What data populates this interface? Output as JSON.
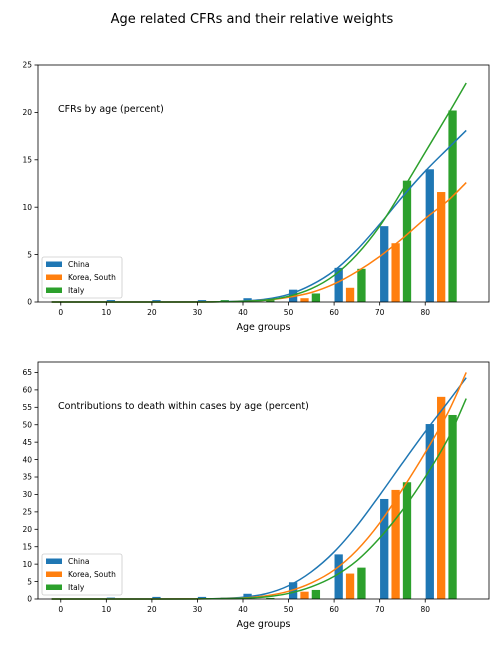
{
  "title": "Age related CFRs and their relative weights",
  "colors": {
    "China": "#1f77b4",
    "Korea, South": "#ff7f0e",
    "Italy": "#2ca02c"
  },
  "chart_data": [
    {
      "type": "bar",
      "annotation": "CFRs by age (percent)",
      "xlabel": "Age groups",
      "ylabel": "",
      "xlim": [
        -5,
        94
      ],
      "ylim": [
        0,
        25
      ],
      "xticks": [
        0,
        10,
        20,
        30,
        40,
        50,
        60,
        70,
        80
      ],
      "yticks": [
        0,
        5,
        10,
        15,
        20,
        25
      ],
      "legend": "lower-left",
      "grid": false,
      "categories": [
        "0",
        "10",
        "20",
        "30",
        "40",
        "50",
        "60",
        "70",
        "80"
      ],
      "series": [
        {
          "name": "China",
          "x": [
            1,
            11,
            21,
            31,
            41,
            51,
            61,
            71,
            81
          ],
          "values": [
            0.0,
            0.2,
            0.2,
            0.2,
            0.4,
            1.3,
            3.6,
            8.0,
            14.0
          ],
          "curve": [
            [
              -2,
              0.0
            ],
            [
              10,
              0.0
            ],
            [
              20,
              0.0
            ],
            [
              30,
              0.01
            ],
            [
              35,
              0.03
            ],
            [
              40,
              0.1
            ],
            [
              45,
              0.3
            ],
            [
              50,
              0.8
            ],
            [
              55,
              1.8
            ],
            [
              60,
              3.3
            ],
            [
              65,
              5.5
            ],
            [
              70,
              8.2
            ],
            [
              75,
              11.1
            ],
            [
              80,
              13.8
            ],
            [
              85,
              16.2
            ],
            [
              89,
              18.1
            ]
          ]
        },
        {
          "name": "Korea, South",
          "x": [
            3.5,
            13.5,
            23.5,
            33.5,
            43.5,
            53.5,
            63.5,
            73.5,
            83.5
          ],
          "values": [
            0.0,
            0.0,
            0.0,
            0.0,
            0.0,
            0.4,
            1.5,
            6.2,
            11.6
          ],
          "curve": [
            [
              -2,
              0.0
            ],
            [
              20,
              0.0
            ],
            [
              30,
              0.0
            ],
            [
              35,
              0.02
            ],
            [
              40,
              0.07
            ],
            [
              45,
              0.2
            ],
            [
              50,
              0.5
            ],
            [
              55,
              1.0
            ],
            [
              60,
              1.9
            ],
            [
              65,
              3.2
            ],
            [
              70,
              4.8
            ],
            [
              75,
              6.7
            ],
            [
              80,
              8.8
            ],
            [
              85,
              10.7
            ],
            [
              89,
              12.6
            ]
          ]
        },
        {
          "name": "Italy",
          "x": [
            6,
            16,
            26,
            36,
            46,
            56,
            66,
            76,
            86
          ],
          "values": [
            0.0,
            0.0,
            0.0,
            0.2,
            0.2,
            0.9,
            3.5,
            12.8,
            20.2
          ],
          "curve": [
            [
              -2,
              0.0
            ],
            [
              20,
              0.0
            ],
            [
              30,
              0.0
            ],
            [
              35,
              0.02
            ],
            [
              40,
              0.07
            ],
            [
              45,
              0.2
            ],
            [
              50,
              0.6
            ],
            [
              55,
              1.4
            ],
            [
              60,
              2.8
            ],
            [
              65,
              5.0
            ],
            [
              70,
              8.0
            ],
            [
              75,
              11.8
            ],
            [
              80,
              15.8
            ],
            [
              85,
              19.8
            ],
            [
              89,
              23.1
            ]
          ]
        }
      ]
    },
    {
      "type": "bar",
      "annotation": "Contributions to death within cases by age (percent)",
      "xlabel": "Age groups",
      "ylabel": "",
      "xlim": [
        -5,
        94
      ],
      "ylim": [
        0,
        68
      ],
      "xticks": [
        0,
        10,
        20,
        30,
        40,
        50,
        60,
        70,
        80
      ],
      "yticks": [
        0,
        5,
        10,
        15,
        20,
        25,
        30,
        35,
        40,
        45,
        50,
        55,
        60,
        65
      ],
      "legend": "lower-left",
      "grid": false,
      "categories": [
        "0",
        "10",
        "20",
        "30",
        "40",
        "50",
        "60",
        "70",
        "80"
      ],
      "series": [
        {
          "name": "China",
          "x": [
            1,
            11,
            21,
            31,
            41,
            51,
            61,
            71,
            81
          ],
          "values": [
            0.0,
            0.4,
            0.6,
            0.6,
            1.5,
            4.8,
            12.8,
            28.7,
            50.2
          ],
          "curve": [
            [
              -2,
              0.0
            ],
            [
              20,
              0.0
            ],
            [
              30,
              0.05
            ],
            [
              35,
              0.15
            ],
            [
              40,
              0.5
            ],
            [
              45,
              1.5
            ],
            [
              50,
              3.8
            ],
            [
              55,
              7.8
            ],
            [
              60,
              13.5
            ],
            [
              65,
              21.0
            ],
            [
              70,
              29.8
            ],
            [
              75,
              39.0
            ],
            [
              80,
              48.0
            ],
            [
              85,
              56.5
            ],
            [
              89,
              63.5
            ]
          ]
        },
        {
          "name": "Korea, South",
          "x": [
            3.5,
            13.5,
            23.5,
            33.5,
            43.5,
            53.5,
            63.5,
            73.5,
            83.5
          ],
          "values": [
            0.0,
            0.0,
            0.0,
            0.0,
            0.0,
            2.1,
            7.3,
            31.3,
            58.0
          ],
          "curve": [
            [
              -2,
              0.0
            ],
            [
              20,
              0.0
            ],
            [
              30,
              0.05
            ],
            [
              35,
              0.1
            ],
            [
              40,
              0.3
            ],
            [
              45,
              0.9
            ],
            [
              50,
              2.2
            ],
            [
              55,
              4.6
            ],
            [
              60,
              8.3
            ],
            [
              65,
              14.0
            ],
            [
              70,
              21.8
            ],
            [
              75,
              31.5
            ],
            [
              80,
              42.0
            ],
            [
              85,
              53.5
            ],
            [
              89,
              65.0
            ]
          ]
        },
        {
          "name": "Italy",
          "x": [
            6,
            16,
            26,
            36,
            46,
            56,
            66,
            76,
            86
          ],
          "values": [
            0.0,
            0.0,
            0.0,
            0.4,
            0.3,
            2.6,
            9.0,
            33.5,
            52.8
          ],
          "curve": [
            [
              -2,
              0.0
            ],
            [
              20,
              0.0
            ],
            [
              30,
              0.02
            ],
            [
              35,
              0.08
            ],
            [
              40,
              0.2
            ],
            [
              45,
              0.6
            ],
            [
              50,
              1.6
            ],
            [
              55,
              3.5
            ],
            [
              60,
              6.5
            ],
            [
              65,
              11.0
            ],
            [
              70,
              17.5
            ],
            [
              75,
              25.5
            ],
            [
              80,
              35.0
            ],
            [
              85,
              46.0
            ],
            [
              89,
              57.5
            ]
          ]
        }
      ]
    }
  ]
}
